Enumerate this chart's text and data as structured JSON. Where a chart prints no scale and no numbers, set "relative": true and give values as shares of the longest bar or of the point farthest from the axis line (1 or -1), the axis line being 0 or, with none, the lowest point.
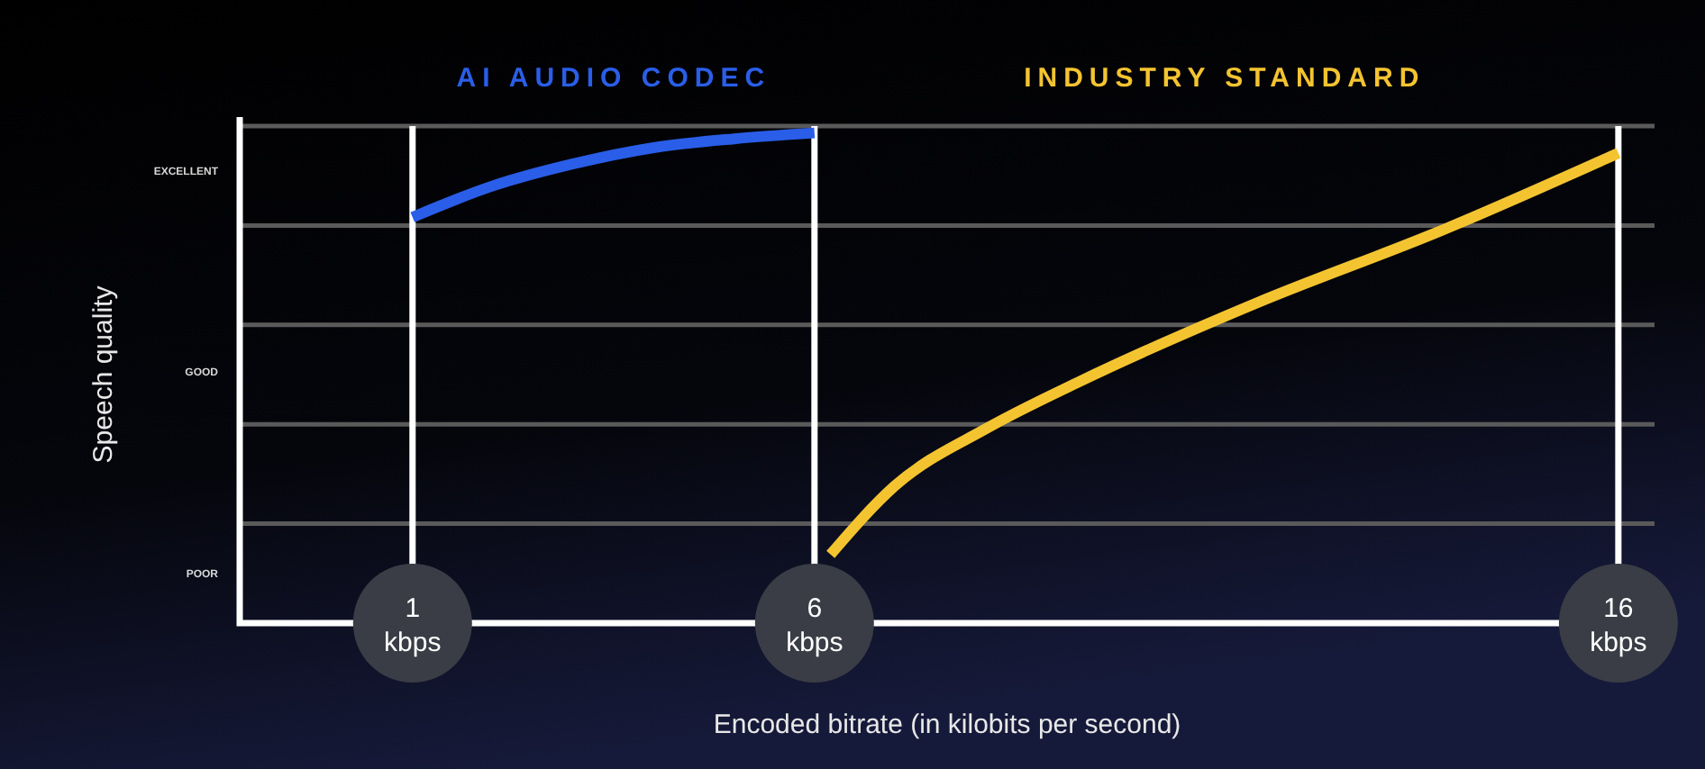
{
  "chart_data": {
    "type": "line",
    "xlabel": "Encoded bitrate (in kilobits per second)",
    "ylabel": "Speech quality",
    "xlim": [
      -1.15,
      16.45
    ],
    "xticks": [
      {
        "value": 1,
        "label": "1 kbps"
      },
      {
        "value": 6,
        "label": "6 kbps"
      },
      {
        "value": 16,
        "label": "16 kbps"
      }
    ],
    "relative": true,
    "annotations": [
      "EXCELLENT",
      "GOOD",
      "POOR"
    ],
    "grid": true,
    "legend": "top",
    "marker": "none",
    "line_style": "solid",
    "series": [
      {
        "name": "AI AUDIO CODEC",
        "color": "#2a5ee8",
        "x": [
          1,
          2,
          3,
          4,
          5,
          6
        ],
        "values": [
          0.828,
          0.892,
          0.937,
          0.97,
          0.988,
          1
        ]
      },
      {
        "name": "INDUSTRY STANDARD",
        "color": "#f4c430",
        "x": [
          6.2,
          7,
          8.15,
          9.3,
          11.5,
          13.8,
          16
        ],
        "values": [
          0.14,
          0.28,
          0.398,
          0.493,
          0.653,
          0.801,
          0.959
        ]
      }
    ]
  }
}
